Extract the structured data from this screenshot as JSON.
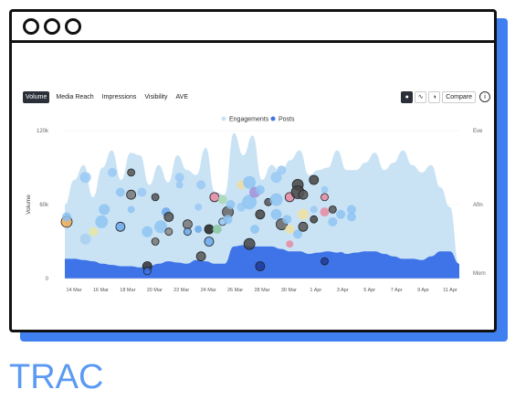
{
  "brand": "TRAC",
  "toolbar": {
    "tabs": [
      {
        "label": "Volume",
        "active": true
      },
      {
        "label": "Media Reach",
        "active": false
      },
      {
        "label": "Impressions",
        "active": false
      },
      {
        "label": "Visibility",
        "active": false
      },
      {
        "label": "AVE",
        "active": false
      }
    ],
    "tools": [
      "bubble-chart-icon",
      "line-chart-icon",
      "toggle-icon"
    ],
    "compare_label": "Compare",
    "info_icon": "info-icon"
  },
  "chart_data": {
    "type": "area",
    "legend": [
      "Engagements",
      "Posts"
    ],
    "legend_position": "top-center",
    "ylabel": "Volume",
    "y_ticks": [
      "0",
      "60k",
      "120k"
    ],
    "ylim": [
      0,
      120000
    ],
    "right_ticks": [
      "Morn",
      "Aftn",
      "Eve"
    ],
    "x_ticks": [
      "14 Mar",
      "16 Mar",
      "18 Mar",
      "20 Mar",
      "22 Mar",
      "24 Mar",
      "26 Mar",
      "28 Mar",
      "30 Mar",
      "1 Apr",
      "3 Apr",
      "5 Apr",
      "7 Apr",
      "9 Apr",
      "11 Apr"
    ],
    "series": [
      {
        "name": "Engagements",
        "color": "#c9e3f5",
        "values": [
          60000,
          80000,
          92000,
          66000,
          90000,
          104000,
          80000,
          102000,
          100000,
          76000,
          92000,
          78000,
          100000,
          88000,
          84000,
          106000,
          70000,
          68000,
          118000,
          100000,
          116000,
          80000,
          92000,
          86000,
          96000,
          104000,
          84000,
          88000,
          90000,
          104000,
          88000,
          88000,
          94000,
          102000,
          88000,
          94000,
          104000,
          92000,
          86000,
          92000,
          74000,
          58000,
          10000
        ]
      },
      {
        "name": "Posts",
        "color": "#3f74e8",
        "values": [
          16000,
          16000,
          15000,
          14000,
          12000,
          11000,
          10000,
          10000,
          9000,
          10000,
          12000,
          14000,
          13000,
          12000,
          15000,
          14000,
          12000,
          12000,
          26000,
          27000,
          26000,
          26000,
          26000,
          24000,
          22000,
          22000,
          20000,
          21000,
          22000,
          21000,
          20000,
          21000,
          22000,
          22000,
          20000,
          18000,
          16000,
          16000,
          15000,
          18000,
          22000,
          22000,
          12000
        ]
      }
    ],
    "bubbles": [
      {
        "d": 0.0,
        "y": 46000,
        "r": 6,
        "c": "#eeaa55",
        "o": true
      },
      {
        "d": 0.0,
        "y": 50000,
        "r": 5,
        "c": "#88c0f0",
        "o": false
      },
      {
        "d": 0.7,
        "y": 82000,
        "r": 6,
        "c": "#9ac8f2",
        "o": false
      },
      {
        "d": 0.7,
        "y": 32000,
        "r": 6,
        "c": "#a8d0f0",
        "o": false
      },
      {
        "d": 1.0,
        "y": 38000,
        "r": 5,
        "c": "#e4e6a0",
        "o": false
      },
      {
        "d": 1.3,
        "y": 46000,
        "r": 7,
        "c": "#8ec4f2",
        "o": false
      },
      {
        "d": 1.4,
        "y": 56000,
        "r": 6,
        "c": "#8ec4f2",
        "o": false
      },
      {
        "d": 1.7,
        "y": 86000,
        "r": 5,
        "c": "#9ac8f2",
        "o": false
      },
      {
        "d": 2.0,
        "y": 70000,
        "r": 5,
        "c": "#8ec4f2",
        "o": false
      },
      {
        "d": 2.0,
        "y": 42000,
        "r": 5,
        "c": "#6aa8ea",
        "o": true
      },
      {
        "d": 2.4,
        "y": 86000,
        "r": 4,
        "c": "#555555",
        "o": true
      },
      {
        "d": 2.4,
        "y": 68000,
        "r": 5,
        "c": "#777777",
        "o": true
      },
      {
        "d": 2.4,
        "y": 56000,
        "r": 4,
        "c": "#8ec4f2",
        "o": false
      },
      {
        "d": 2.8,
        "y": 70000,
        "r": 5,
        "c": "#9ac8f2",
        "o": false
      },
      {
        "d": 3.0,
        "y": 10000,
        "r": 5,
        "c": "#333333",
        "o": true
      },
      {
        "d": 3.0,
        "y": 6000,
        "r": 4,
        "c": "#3f74e8",
        "o": true
      },
      {
        "d": 3.0,
        "y": 38000,
        "r": 6,
        "c": "#8ec4f2",
        "o": false
      },
      {
        "d": 3.3,
        "y": 66000,
        "r": 4,
        "c": "#555555",
        "o": true
      },
      {
        "d": 3.3,
        "y": 30000,
        "r": 4,
        "c": "#777777",
        "o": true
      },
      {
        "d": 3.5,
        "y": 42000,
        "r": 7,
        "c": "#8ec4f2",
        "o": false
      },
      {
        "d": 3.7,
        "y": 54000,
        "r": 5,
        "c": "#6aa8ea",
        "o": false
      },
      {
        "d": 3.8,
        "y": 50000,
        "r": 5,
        "c": "#555555",
        "o": true
      },
      {
        "d": 3.8,
        "y": 38000,
        "r": 4,
        "c": "#888888",
        "o": true
      },
      {
        "d": 4.0,
        "y": 10000,
        "r": 4,
        "c": "#3f74e8",
        "o": false
      },
      {
        "d": 4.2,
        "y": 82000,
        "r": 5,
        "c": "#9ac8f2",
        "o": false
      },
      {
        "d": 4.2,
        "y": 76000,
        "r": 4,
        "c": "#9ac8f2",
        "o": false
      },
      {
        "d": 4.5,
        "y": 44000,
        "r": 5,
        "c": "#777777",
        "o": true
      },
      {
        "d": 4.5,
        "y": 38000,
        "r": 4,
        "c": "#6aa8ea",
        "o": true
      },
      {
        "d": 4.9,
        "y": 58000,
        "r": 4,
        "c": "#9ac8f2",
        "o": false
      },
      {
        "d": 4.9,
        "y": 40000,
        "r": 4,
        "c": "#6aa8ea",
        "o": false
      },
      {
        "d": 5.0,
        "y": 76000,
        "r": 5,
        "c": "#9ac8f2",
        "o": false
      },
      {
        "d": 5.0,
        "y": 18000,
        "r": 5,
        "c": "#555555",
        "o": true
      },
      {
        "d": 5.3,
        "y": 40000,
        "r": 5,
        "c": "#222222",
        "o": true
      },
      {
        "d": 5.3,
        "y": 30000,
        "r": 5,
        "c": "#6aa8ea",
        "o": true
      },
      {
        "d": 5.5,
        "y": 66000,
        "r": 5,
        "c": "#e88aa0",
        "o": true
      },
      {
        "d": 5.6,
        "y": 40000,
        "r": 5,
        "c": "#88c8a0",
        "o": false
      },
      {
        "d": 5.8,
        "y": 64000,
        "r": 5,
        "c": "#a8d8b0",
        "o": false
      },
      {
        "d": 5.8,
        "y": 46000,
        "r": 4,
        "c": "#9ac8f2",
        "o": true
      },
      {
        "d": 6.0,
        "y": 54000,
        "r": 6,
        "c": "#666666",
        "o": true
      },
      {
        "d": 6.0,
        "y": 48000,
        "r": 5,
        "c": "#8ec4f2",
        "o": false
      },
      {
        "d": 6.1,
        "y": 60000,
        "r": 5,
        "c": "#8ec4f2",
        "o": false
      },
      {
        "d": 6.5,
        "y": 76000,
        "r": 5,
        "c": "#f0dca0",
        "o": false
      },
      {
        "d": 6.5,
        "y": 58000,
        "r": 5,
        "c": "#9ac8f2",
        "o": false
      },
      {
        "d": 6.8,
        "y": 78000,
        "r": 7,
        "c": "#8ec4f2",
        "o": false
      },
      {
        "d": 6.8,
        "y": 62000,
        "r": 8,
        "c": "#8ec4f2",
        "o": false
      },
      {
        "d": 6.8,
        "y": 28000,
        "r": 6,
        "c": "#444444",
        "o": true
      },
      {
        "d": 7.0,
        "y": 70000,
        "r": 6,
        "c": "#a090d8",
        "o": false
      },
      {
        "d": 7.0,
        "y": 40000,
        "r": 5,
        "c": "#8ec4f2",
        "o": false
      },
      {
        "d": 7.2,
        "y": 52000,
        "r": 5,
        "c": "#444444",
        "o": true
      },
      {
        "d": 7.2,
        "y": 72000,
        "r": 5,
        "c": "#8ec4f2",
        "o": false
      },
      {
        "d": 7.2,
        "y": 10000,
        "r": 5,
        "c": "#1e3a9c",
        "o": true
      },
      {
        "d": 7.5,
        "y": 62000,
        "r": 4,
        "c": "#555555",
        "o": true
      },
      {
        "d": 7.5,
        "y": 12000,
        "r": 4,
        "c": "#3f74e8",
        "o": false
      },
      {
        "d": 7.8,
        "y": 82000,
        "r": 6,
        "c": "#9ac8f2",
        "o": false
      },
      {
        "d": 7.8,
        "y": 64000,
        "r": 7,
        "c": "#8ec4f2",
        "o": false
      },
      {
        "d": 7.8,
        "y": 52000,
        "r": 6,
        "c": "#8ec4f2",
        "o": false
      },
      {
        "d": 8.0,
        "y": 88000,
        "r": 5,
        "c": "#9ac8f2",
        "o": false
      },
      {
        "d": 8.0,
        "y": 44000,
        "r": 6,
        "c": "#666666",
        "o": true
      },
      {
        "d": 8.2,
        "y": 48000,
        "r": 5,
        "c": "#8ec4f2",
        "o": false
      },
      {
        "d": 8.3,
        "y": 40000,
        "r": 5,
        "c": "#f0e0a0",
        "o": false
      },
      {
        "d": 8.3,
        "y": 66000,
        "r": 5,
        "c": "#e88aa0",
        "o": true
      },
      {
        "d": 8.3,
        "y": 28000,
        "r": 4,
        "c": "#e88aa0",
        "o": false
      },
      {
        "d": 8.6,
        "y": 76000,
        "r": 6,
        "c": "#444444",
        "o": true
      },
      {
        "d": 8.6,
        "y": 70000,
        "r": 7,
        "c": "#444444",
        "o": true
      },
      {
        "d": 8.6,
        "y": 36000,
        "r": 5,
        "c": "#8ec4f2",
        "o": false
      },
      {
        "d": 8.8,
        "y": 68000,
        "r": 5,
        "c": "#555555",
        "o": true
      },
      {
        "d": 8.8,
        "y": 52000,
        "r": 6,
        "c": "#f0e0a0",
        "o": false
      },
      {
        "d": 8.8,
        "y": 42000,
        "r": 5,
        "c": "#555555",
        "o": true
      },
      {
        "d": 9.2,
        "y": 80000,
        "r": 5,
        "c": "#444444",
        "o": true
      },
      {
        "d": 9.2,
        "y": 56000,
        "r": 4,
        "c": "#9ac8f2",
        "o": false
      },
      {
        "d": 9.2,
        "y": 48000,
        "r": 4,
        "c": "#444444",
        "o": true
      },
      {
        "d": 9.6,
        "y": 72000,
        "r": 4,
        "c": "#9ac8f2",
        "o": false
      },
      {
        "d": 9.6,
        "y": 66000,
        "r": 4,
        "c": "#e88aa0",
        "o": true
      },
      {
        "d": 9.6,
        "y": 54000,
        "r": 5,
        "c": "#e88aa0",
        "o": false
      },
      {
        "d": 9.6,
        "y": 14000,
        "r": 4,
        "c": "#1e3a9c",
        "o": true
      },
      {
        "d": 9.9,
        "y": 56000,
        "r": 4,
        "c": "#555555",
        "o": true
      },
      {
        "d": 9.9,
        "y": 46000,
        "r": 5,
        "c": "#8ec4f2",
        "o": false
      },
      {
        "d": 10.2,
        "y": 52000,
        "r": 5,
        "c": "#8ec4f2",
        "o": false
      },
      {
        "d": 10.2,
        "y": 18000,
        "r": 5,
        "c": "#3f74e8",
        "o": false
      },
      {
        "d": 10.2,
        "y": 10000,
        "r": 4,
        "c": "#3f74e8",
        "o": false
      },
      {
        "d": 10.6,
        "y": 56000,
        "r": 5,
        "c": "#8ec4f2",
        "o": false
      },
      {
        "d": 10.6,
        "y": 50000,
        "r": 5,
        "c": "#8ec4f2",
        "o": false
      }
    ]
  }
}
